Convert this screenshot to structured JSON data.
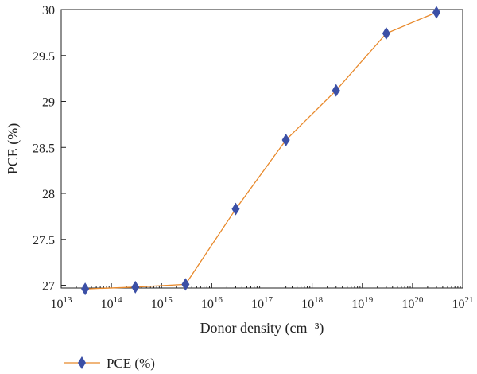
{
  "chart_data": {
    "type": "line",
    "title": "",
    "xlabel": "Donor density (cm⁻³)",
    "ylabel": "PCE (%)",
    "x_scale": "log",
    "xlim": [
      10000000000000.0,
      1e+21
    ],
    "ylim": [
      26.97,
      30
    ],
    "x_tick_labels": [
      {
        "base": "10",
        "exp": "13"
      },
      {
        "base": "10",
        "exp": "14"
      },
      {
        "base": "10",
        "exp": "15"
      },
      {
        "base": "10",
        "exp": "16"
      },
      {
        "base": "10",
        "exp": "17"
      },
      {
        "base": "10",
        "exp": "18"
      },
      {
        "base": "10",
        "exp": "19"
      },
      {
        "base": "10",
        "exp": "20"
      },
      {
        "base": "10",
        "exp": "21"
      }
    ],
    "y_tick_labels": [
      "27",
      "27.5",
      "28",
      "28.5",
      "29",
      "29.5",
      "30"
    ],
    "grid": false,
    "legend_position": "bottom-left",
    "series": [
      {
        "name": "PCE (%)",
        "line_color": "#E8892B",
        "marker_color": "#3B4FA6",
        "marker": "diamond",
        "x": [
          30000000000000.0,
          300000000000000.0,
          3000000000000000.0,
          3e+16,
          3e+17,
          3e+18,
          3e+19,
          3e+20
        ],
        "y": [
          26.96,
          26.98,
          27.01,
          27.83,
          28.58,
          29.12,
          29.74,
          29.97
        ]
      }
    ]
  }
}
